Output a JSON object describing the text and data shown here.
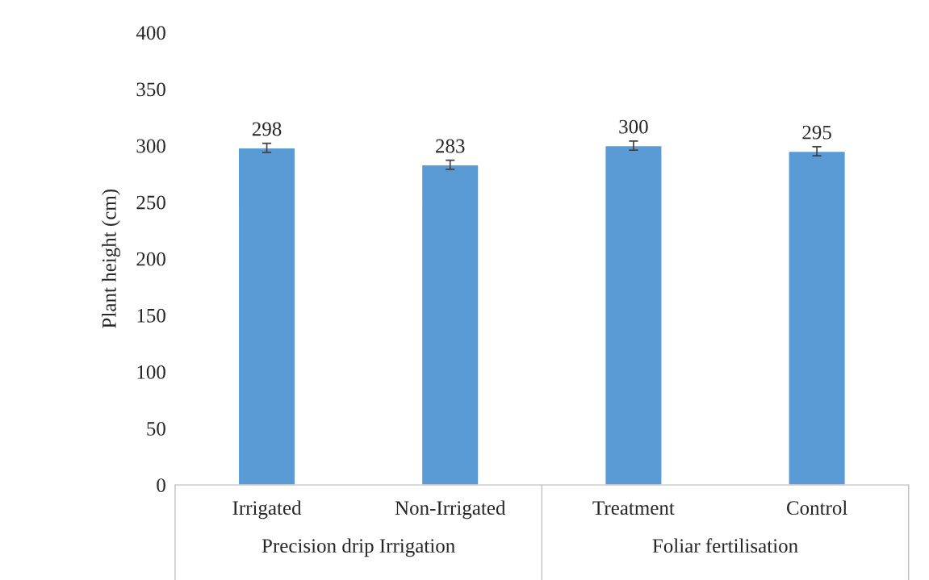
{
  "chart_data": {
    "type": "bar",
    "ylabel": "Plant height (cm)",
    "categories": [
      "Irrigated",
      "Non-Irrigated",
      "Treatment",
      "Control"
    ],
    "values": [
      298,
      283,
      300,
      295
    ],
    "errors": [
      4,
      4,
      4,
      4
    ],
    "color": "#5b9bd5",
    "data_labels": true,
    "ylim": [
      0,
      400
    ],
    "yticks": [
      0,
      50,
      100,
      150,
      200,
      250,
      300,
      350,
      400
    ],
    "grid": false,
    "legend": false,
    "annotations": [
      "Precision drip Irrigation",
      "Foliar fertilisation"
    ]
  }
}
